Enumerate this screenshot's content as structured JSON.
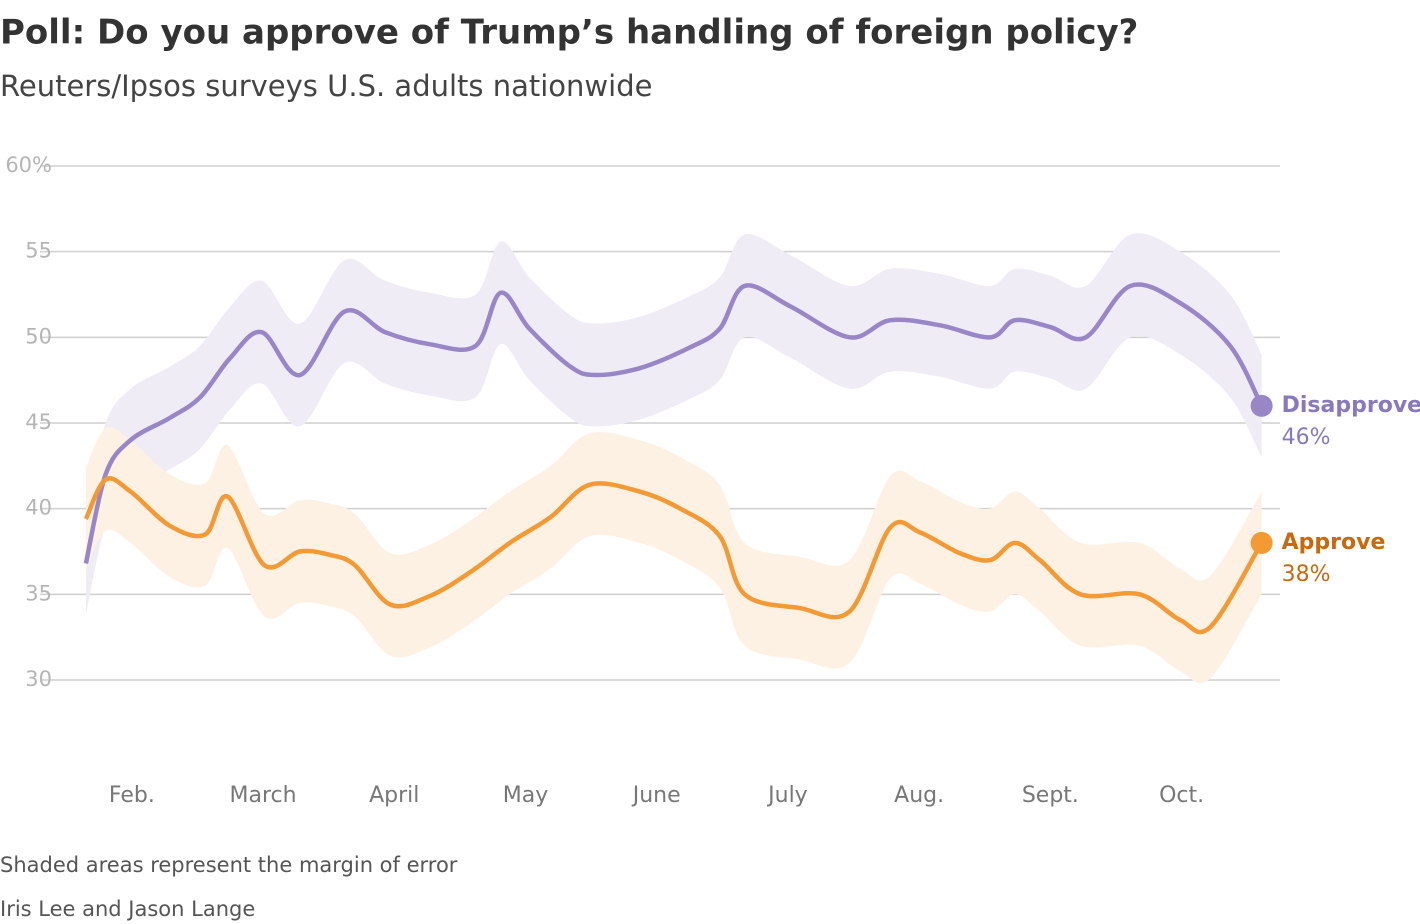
{
  "chart_data": {
    "type": "line",
    "title": "Poll: Do you approve of Trump’s handling of foreign policy?",
    "subtitle": "Reuters/Ipsos surveys U.S. adults nationwide",
    "note": "Shaded areas represent the margin of error",
    "byline": "Iris Lee and Jason Lange",
    "xlim": [
      1.3,
      10.75
    ],
    "xticks": [
      {
        "value": 2,
        "label": "Feb."
      },
      {
        "value": 3,
        "label": "March"
      },
      {
        "value": 4,
        "label": "April"
      },
      {
        "value": 5,
        "label": "May"
      },
      {
        "value": 6,
        "label": "June"
      },
      {
        "value": 7,
        "label": "July"
      },
      {
        "value": 8,
        "label": "Aug."
      },
      {
        "value": 9,
        "label": "Sept."
      },
      {
        "value": 10,
        "label": "Oct."
      }
    ],
    "ylim": [
      30,
      60
    ],
    "yticks": [
      30,
      35,
      40,
      45,
      50,
      55,
      {
        "value": 60,
        "label": "60%"
      }
    ],
    "grid": true,
    "series": [
      {
        "name": "Disapprove",
        "color": "#9886c6",
        "label_color": "#8a78bd",
        "band_color": "#efecf6",
        "x": [
          1.65,
          1.8,
          1.99,
          2.29,
          2.52,
          2.75,
          2.99,
          3.28,
          3.62,
          3.93,
          4.27,
          4.62,
          4.81,
          5.03,
          5.34,
          5.53,
          5.87,
          6.25,
          6.48,
          6.67,
          7.02,
          7.47,
          7.78,
          8.16,
          8.54,
          8.73,
          9.0,
          9.27,
          9.61,
          9.99,
          10.37,
          10.61
        ],
        "values": [
          36.8,
          42,
          44,
          45.3,
          46.5,
          48.8,
          50.3,
          47.8,
          51.5,
          50.3,
          49.6,
          49.5,
          52.6,
          50.5,
          48.3,
          47.8,
          48.2,
          49.4,
          50.5,
          53,
          51.8,
          50,
          51,
          50.7,
          50,
          51,
          50.6,
          50,
          53,
          52,
          49.5,
          46
        ],
        "upper": [
          39.8,
          45,
          47,
          48.3,
          49.5,
          51.8,
          53.3,
          50.8,
          54.5,
          53.3,
          52.6,
          52.5,
          55.6,
          53.5,
          51.3,
          50.8,
          51.2,
          52.4,
          53.5,
          56,
          54.8,
          53,
          54,
          53.7,
          53,
          54,
          53.6,
          53,
          56,
          55,
          52.5,
          49
        ],
        "lower": [
          33.8,
          39,
          41,
          42.3,
          43.5,
          45.8,
          47.3,
          44.8,
          48.5,
          47.3,
          46.6,
          46.5,
          49.6,
          47.5,
          45.3,
          44.8,
          45.2,
          46.4,
          47.5,
          50,
          48.8,
          47,
          48,
          47.7,
          47,
          48,
          47.6,
          47,
          50,
          49,
          46.5,
          43
        ],
        "value_labels": [
          null,
          null,
          null,
          null,
          null,
          null,
          null,
          null,
          null,
          null,
          null,
          null,
          null,
          null,
          null,
          null,
          null,
          null,
          null,
          null,
          null,
          null,
          null,
          null,
          null,
          null,
          null,
          null,
          null,
          null,
          null,
          "46%"
        ]
      },
      {
        "name": "Approve",
        "color": "#f39a35",
        "label_color": "#c8690e",
        "band_color": "#fdf1e4",
        "x": [
          1.65,
          1.8,
          1.99,
          2.29,
          2.56,
          2.73,
          3.01,
          3.28,
          3.51,
          3.7,
          3.97,
          4.27,
          4.58,
          4.88,
          5.19,
          5.49,
          5.87,
          6.18,
          6.48,
          6.67,
          7.09,
          7.47,
          7.78,
          8.01,
          8.31,
          8.54,
          8.73,
          8.92,
          9.23,
          9.68,
          9.99,
          10.22,
          10.61
        ],
        "values": [
          39.4,
          41.7,
          41,
          39,
          38.5,
          40.7,
          36.7,
          37.5,
          37.3,
          36.7,
          34.4,
          34.9,
          36.3,
          38,
          39.5,
          41.4,
          41,
          40,
          38.4,
          35,
          34.2,
          34,
          38.9,
          38.6,
          37.4,
          37,
          38,
          37,
          35,
          35,
          33.5,
          33.1,
          38
        ],
        "upper": [
          42.4,
          44.7,
          44,
          42,
          41.5,
          43.7,
          39.7,
          40.5,
          40.3,
          39.7,
          37.4,
          37.9,
          39.3,
          41,
          42.5,
          44.4,
          44,
          43,
          41.4,
          38,
          37.2,
          37,
          41.9,
          41.6,
          40.4,
          40,
          41,
          40,
          38,
          38,
          36.5,
          36.1,
          41
        ],
        "lower": [
          36.4,
          38.7,
          38,
          36,
          35.5,
          37.7,
          33.7,
          34.5,
          34.3,
          33.7,
          31.4,
          31.9,
          33.3,
          35,
          36.5,
          38.4,
          38,
          37,
          35.4,
          32,
          31.2,
          31,
          35.9,
          35.6,
          34.4,
          34,
          35,
          34,
          32,
          32,
          30.5,
          30.1,
          35
        ],
        "value_labels": [
          null,
          null,
          null,
          null,
          null,
          null,
          null,
          null,
          null,
          null,
          null,
          null,
          null,
          null,
          null,
          null,
          null,
          null,
          null,
          null,
          null,
          null,
          null,
          null,
          null,
          null,
          null,
          null,
          null,
          null,
          null,
          null,
          "38%"
        ]
      }
    ]
  }
}
